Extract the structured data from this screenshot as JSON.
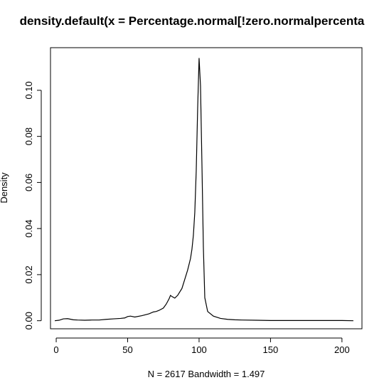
{
  "chart_data": {
    "type": "line",
    "title": "density.default(x = Percentage.normal[!zero.normalpercenta",
    "xlabel": "N = 2617   Bandwidth = 1.497",
    "ylabel": "Density",
    "xlim": [
      -4,
      214
    ],
    "ylim": [
      -0.0035,
      0.1185
    ],
    "x_ticks": [
      0,
      50,
      100,
      150,
      200
    ],
    "y_ticks": [
      0.0,
      0.02,
      0.04,
      0.06,
      0.08,
      0.1
    ],
    "x_tick_labels": [
      "0",
      "50",
      "100",
      "150",
      "200"
    ],
    "y_tick_labels": [
      "0.00",
      "0.02",
      "0.04",
      "0.06",
      "0.08",
      "0.10"
    ],
    "grid": false,
    "legend": "none",
    "series": [
      {
        "x": [
          -1,
          2,
          5,
          8,
          12,
          15,
          20,
          25,
          30,
          35,
          40,
          45,
          48,
          50,
          52,
          55,
          60,
          65,
          68,
          70,
          72,
          75,
          77,
          79,
          80,
          81,
          83,
          85,
          88,
          90,
          92,
          94,
          95,
          96,
          97,
          98,
          99,
          100,
          101,
          102,
          103,
          104,
          106,
          110,
          115,
          120,
          125,
          130,
          140,
          150,
          160,
          170,
          180,
          190,
          200,
          208
        ],
        "y": [
          0.0,
          0.0002,
          0.0008,
          0.0009,
          0.0004,
          0.0003,
          0.0002,
          0.0003,
          0.0003,
          0.0006,
          0.0008,
          0.001,
          0.0012,
          0.0018,
          0.002,
          0.0016,
          0.0022,
          0.003,
          0.0038,
          0.004,
          0.0045,
          0.0055,
          0.0072,
          0.0095,
          0.011,
          0.0105,
          0.0098,
          0.011,
          0.014,
          0.018,
          0.022,
          0.027,
          0.031,
          0.037,
          0.047,
          0.065,
          0.092,
          0.114,
          0.102,
          0.068,
          0.032,
          0.01,
          0.004,
          0.002,
          0.001,
          0.0006,
          0.0004,
          0.0003,
          0.0002,
          0.0001,
          0.0001,
          0.0001,
          0.0001,
          0.0001,
          0.0001,
          0.0
        ]
      }
    ]
  }
}
